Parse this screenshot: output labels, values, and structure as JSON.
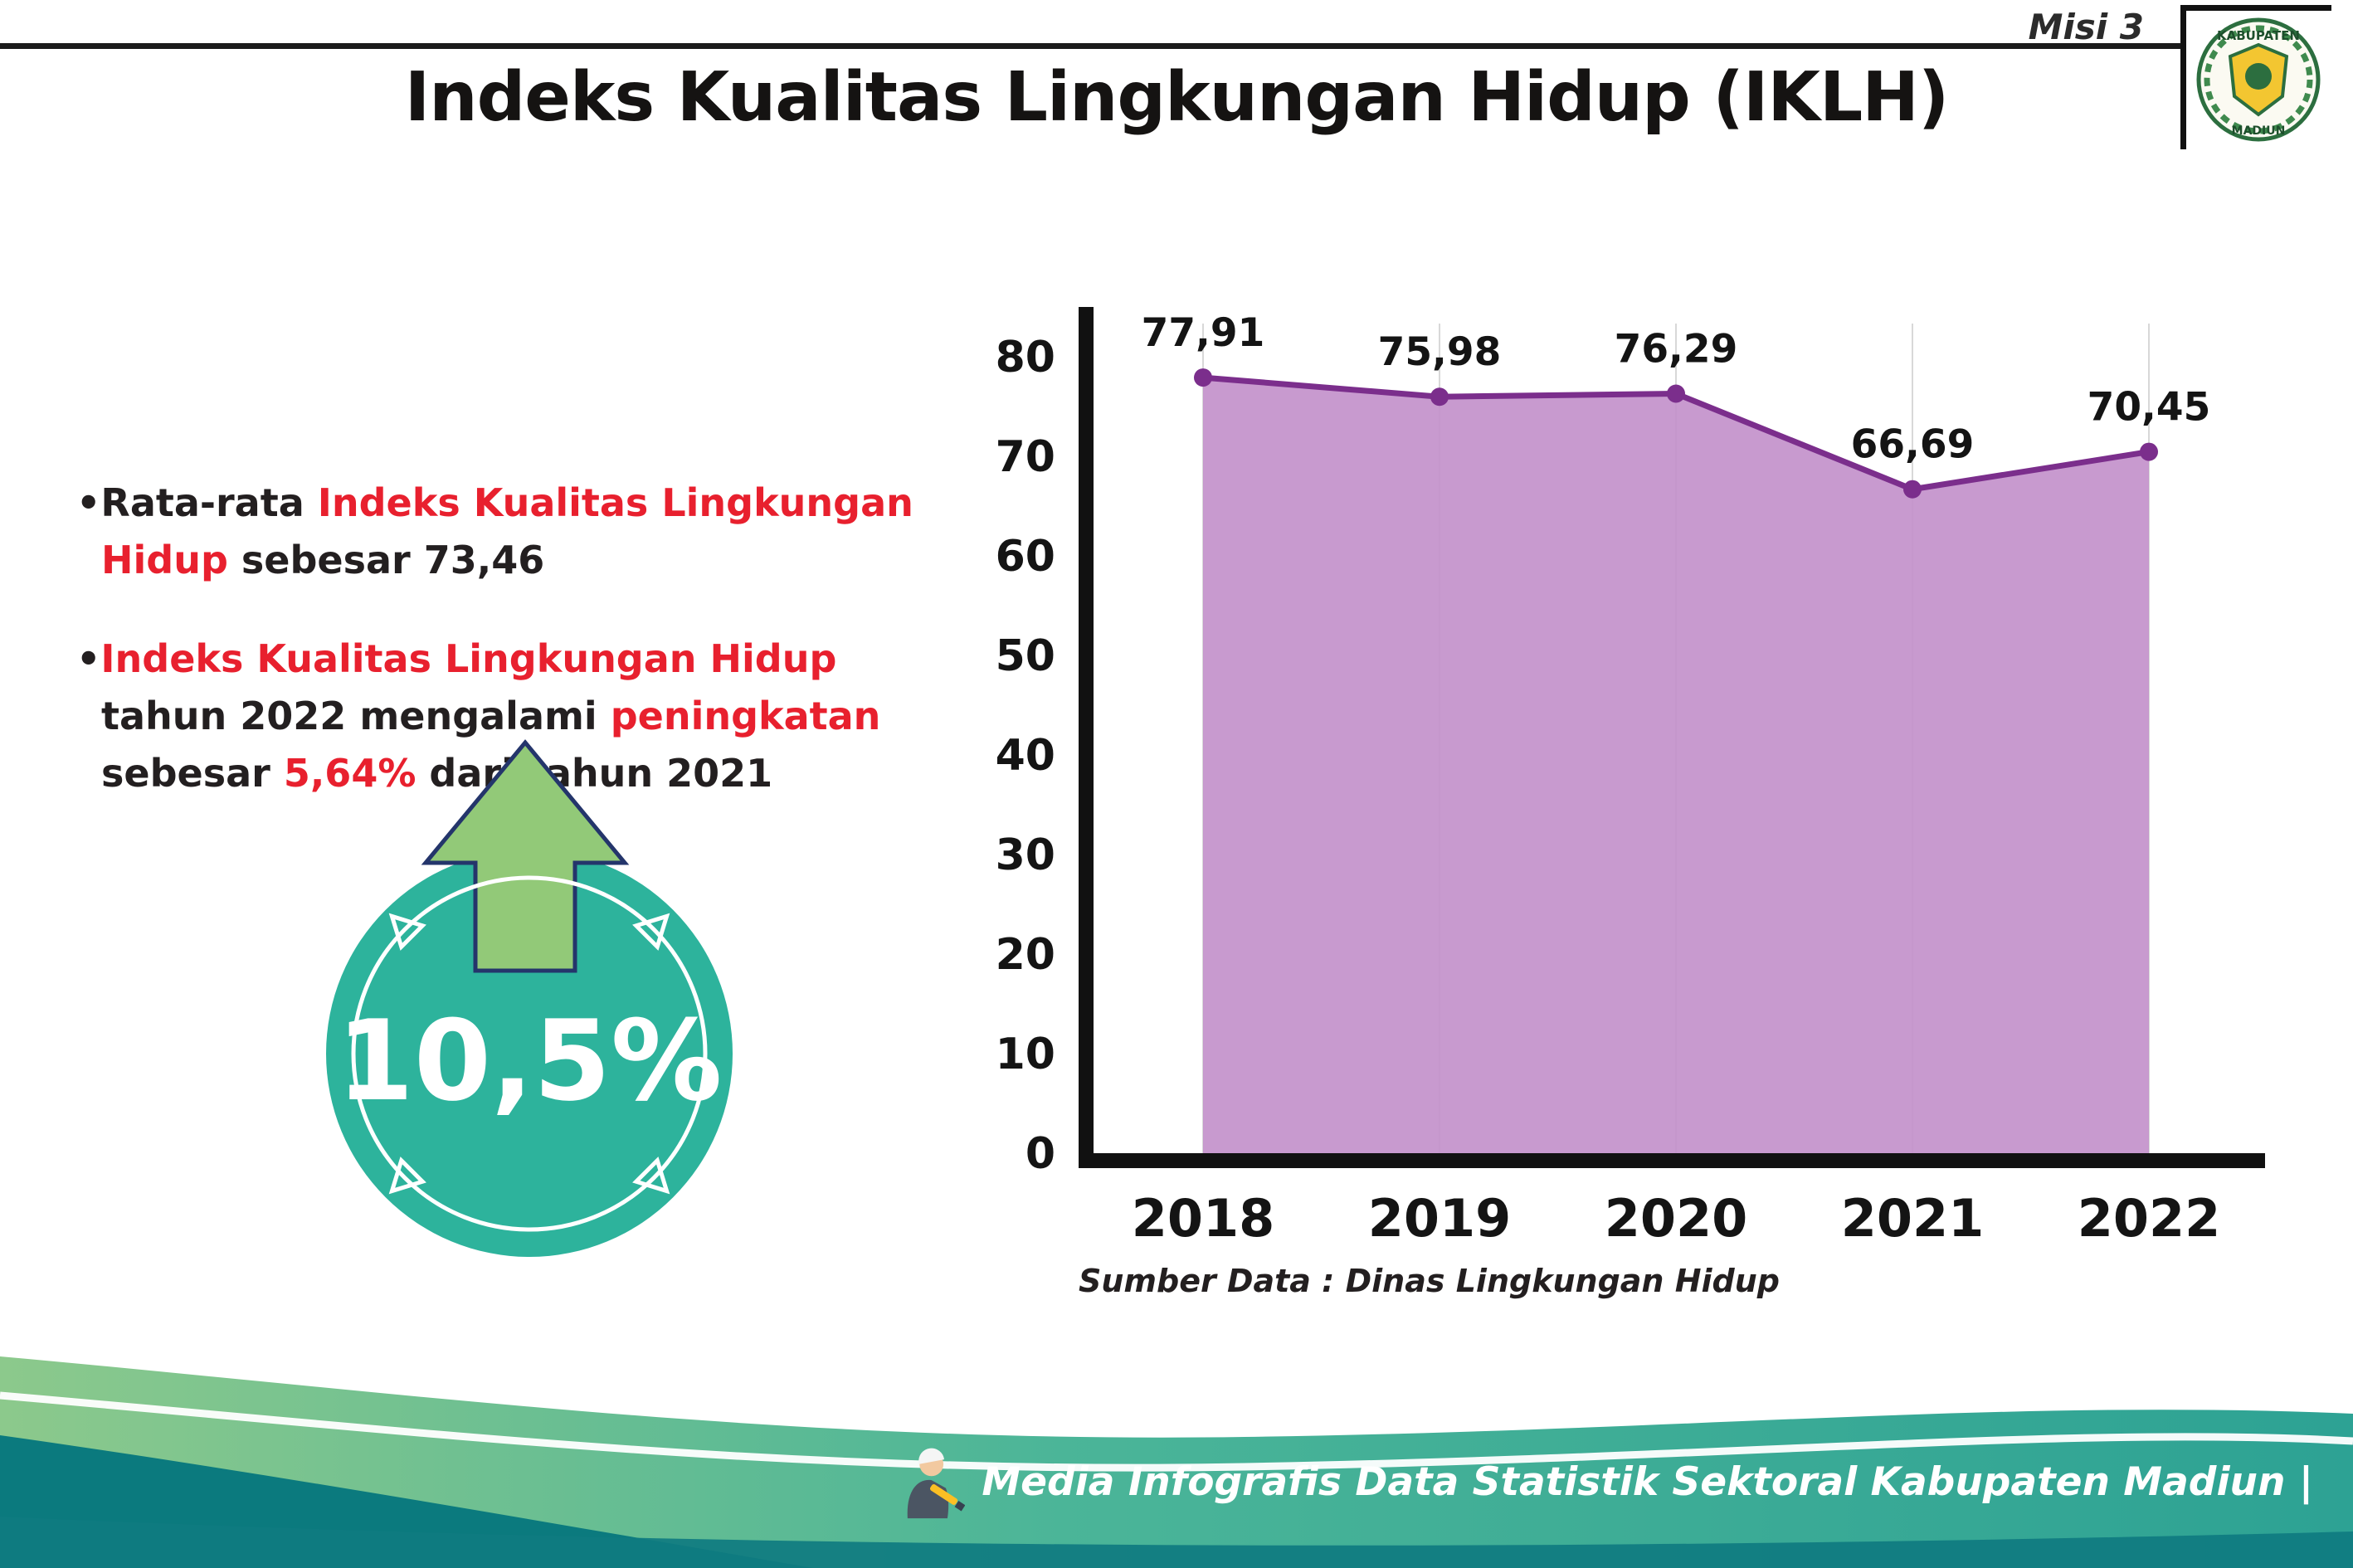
{
  "header": {
    "misi": "Misi 3",
    "title": "Indeks Kualitas Lingkungan Hidup (IKLH)",
    "logo": {
      "top_text": "KABUPATEN",
      "bottom_text": "MADIUN"
    }
  },
  "bullets": [
    {
      "runs": [
        {
          "t": "•",
          "c": "dark"
        },
        {
          "t": "Rata-rata ",
          "c": "dark"
        },
        {
          "t": "Indeks Kualitas Lingkungan Hidup",
          "c": "red"
        },
        {
          "t": " sebesar 73,46",
          "c": "dark"
        }
      ]
    },
    {
      "runs": [
        {
          "t": "•",
          "c": "dark"
        },
        {
          "t": "Indeks Kualitas Lingkungan Hidup",
          "c": "red"
        },
        {
          "t": " tahun 2022 mengalami ",
          "c": "dark"
        },
        {
          "t": "peningkatan",
          "c": "red"
        },
        {
          "t": " sebesar ",
          "c": "dark"
        },
        {
          "t": "5,64%",
          "c": "red"
        },
        {
          "t": " dari tahun 2021",
          "c": "dark"
        }
      ]
    }
  ],
  "badge": {
    "value": "10,5%",
    "circle_color": "#2db39c",
    "arrow_color": "#92c978",
    "arrow_outline": "#24356b"
  },
  "chart_data": {
    "type": "area",
    "x": [
      "2018",
      "2019",
      "2020",
      "2021",
      "2022"
    ],
    "series": [
      {
        "name": "IKLH",
        "values": [
          77.91,
          75.98,
          76.29,
          66.69,
          70.45
        ]
      }
    ],
    "labels": [
      "77,91",
      "75,98",
      "76,29",
      "66,69",
      "70,45"
    ],
    "title": "",
    "xlabel": "",
    "ylabel": "",
    "ylim": [
      0,
      80
    ],
    "yticks": [
      0,
      10,
      20,
      30,
      40,
      50,
      60,
      70,
      80
    ],
    "grid": "light vertical gridlines at each year",
    "legend": "none",
    "fill_color": "#c391cb",
    "line_color": "#7b2e8c",
    "source": "Sumber Data : Dinas Lingkungan Hidup"
  },
  "footer": {
    "text": "Media Infografis Data Statistik Sektoral Kabupaten Madiun |"
  }
}
